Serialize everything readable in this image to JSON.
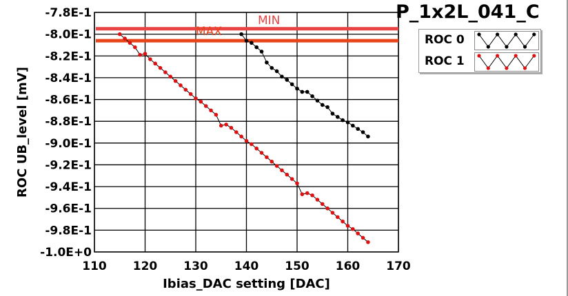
{
  "title": "P_1x2L_041_C",
  "legend": [
    {
      "label": "ROC 0",
      "color": "#000000"
    },
    {
      "label": "ROC 1",
      "color": "#dd1111"
    }
  ],
  "chart_data": {
    "type": "scatter",
    "title": "P_1x2L_041_C",
    "xlabel": "Ibias_DAC setting [DAC]",
    "ylabel": "ROC UB_level [mV]",
    "xlim": [
      110,
      170
    ],
    "ylim": [
      -1.0,
      -0.78
    ],
    "grid": true,
    "legend_position": "top-right",
    "xticks": [
      110,
      120,
      130,
      140,
      150,
      160,
      170
    ],
    "xtick_labels": [
      "110",
      "120",
      "130",
      "140",
      "150",
      "160",
      "170"
    ],
    "yticks": [
      -0.78,
      -0.8,
      -0.82,
      -0.84,
      -0.86,
      -0.88,
      -0.9,
      -0.92,
      -0.94,
      -0.96,
      -0.98,
      -1.0
    ],
    "ytick_labels": [
      "-7.8E-1",
      "-8.0E-1",
      "-8.2E-1",
      "-8.4E-1",
      "-8.6E-1",
      "-8.8E-1",
      "-9.0E-1",
      "-9.2E-1",
      "-9.4E-1",
      "-9.6E-1",
      "-9.8E-1",
      "-1.0E+0"
    ],
    "hlines": [
      {
        "label": "MIN",
        "y": -0.795,
        "color": "#e84444"
      },
      {
        "label": "MAX",
        "y": -0.806,
        "color": "#e8441a"
      }
    ],
    "series": [
      {
        "name": "ROC 0",
        "color": "#000000",
        "x": [
          139,
          140,
          141,
          142,
          143,
          144,
          145,
          146,
          147,
          148,
          149,
          150,
          151,
          152,
          153,
          154,
          155,
          156,
          157,
          158,
          159,
          160,
          161,
          162,
          163,
          164
        ],
        "y": [
          -0.8,
          -0.806,
          -0.808,
          -0.812,
          -0.816,
          -0.826,
          -0.831,
          -0.834,
          -0.839,
          -0.842,
          -0.846,
          -0.85,
          -0.853,
          -0.853,
          -0.857,
          -0.861,
          -0.865,
          -0.867,
          -0.873,
          -0.876,
          -0.879,
          -0.881,
          -0.884,
          -0.887,
          -0.89,
          -0.894
        ]
      },
      {
        "name": "ROC 1",
        "color": "#dd1111",
        "x": [
          115,
          116,
          117,
          118,
          119,
          120,
          121,
          122,
          123,
          124,
          125,
          126,
          127,
          128,
          129,
          130,
          131,
          132,
          133,
          134,
          135,
          136,
          137,
          138,
          139,
          140,
          141,
          142,
          143,
          144,
          145,
          146,
          147,
          148,
          149,
          150,
          151,
          152,
          153,
          154,
          155,
          156,
          157,
          158,
          159,
          160,
          161,
          162,
          163,
          164
        ],
        "y": [
          -0.8,
          -0.804,
          -0.808,
          -0.812,
          -0.819,
          -0.818,
          -0.823,
          -0.827,
          -0.831,
          -0.835,
          -0.839,
          -0.843,
          -0.847,
          -0.851,
          -0.855,
          -0.859,
          -0.862,
          -0.866,
          -0.87,
          -0.874,
          -0.884,
          -0.883,
          -0.886,
          -0.89,
          -0.894,
          -0.898,
          -0.901,
          -0.905,
          -0.909,
          -0.913,
          -0.917,
          -0.921,
          -0.925,
          -0.929,
          -0.933,
          -0.937,
          -0.947,
          -0.946,
          -0.948,
          -0.952,
          -0.956,
          -0.96,
          -0.964,
          -0.968,
          -0.972,
          -0.976,
          -0.979,
          -0.983,
          -0.987,
          -0.991
        ]
      }
    ]
  }
}
